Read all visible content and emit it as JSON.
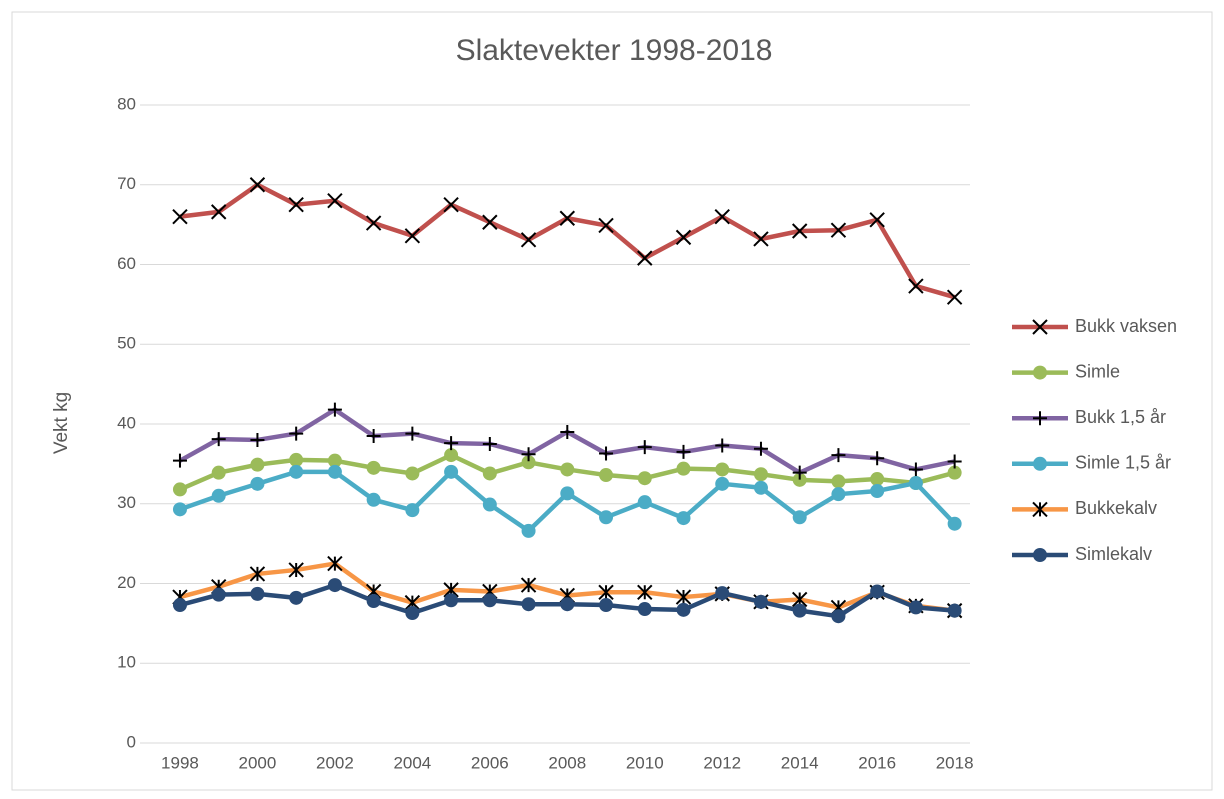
{
  "chart_data": {
    "type": "line",
    "title": "Slaktevekter 1998-2018",
    "y_label": "Vekt kg",
    "categories": [
      "1998",
      null,
      "2000",
      null,
      "2002",
      null,
      "2004",
      null,
      "2006",
      null,
      "2008",
      null,
      "2010",
      null,
      "2012",
      null,
      "2014",
      null,
      "2016",
      null,
      "2018"
    ],
    "ylim": [
      0,
      80
    ],
    "yticks": [
      0,
      10,
      20,
      30,
      40,
      50,
      60,
      70,
      80
    ],
    "grid": true,
    "legend": "right",
    "series": [
      {
        "name": "Bukk vaksen",
        "color": "#c0504d",
        "marker": "x",
        "values": [
          66,
          66.6,
          70,
          67.5,
          68,
          65.2,
          63.6,
          67.5,
          65.3,
          63.1,
          65.8,
          64.9,
          60.8,
          63.4,
          66,
          63.2,
          64.2,
          64.3,
          65.6,
          57.3,
          55.9
        ]
      },
      {
        "name": "Simle",
        "color": "#9bbb59",
        "marker": "circle",
        "values": [
          31.8,
          33.9,
          34.9,
          35.5,
          35.4,
          34.5,
          33.8,
          36.1,
          33.8,
          35.2,
          34.3,
          33.6,
          33.2,
          34.4,
          34.3,
          33.7,
          33,
          32.8,
          33.1,
          32.6,
          33.9
        ]
      },
      {
        "name": "Bukk 1,5 år",
        "color": "#8064a2",
        "marker": "plus",
        "values": [
          35.4,
          38.1,
          38,
          38.8,
          41.8,
          38.5,
          38.8,
          37.6,
          37.5,
          36.2,
          39,
          36.3,
          37.1,
          36.5,
          37.3,
          36.9,
          33.9,
          36.1,
          35.7,
          34.3,
          35.3
        ]
      },
      {
        "name": "Simle 1,5 år",
        "color": "#4bacc6",
        "marker": "circle",
        "values": [
          29.3,
          31,
          32.5,
          34,
          34,
          30.5,
          29.2,
          34,
          29.9,
          26.6,
          31.3,
          28.3,
          30.2,
          28.2,
          32.5,
          32,
          28.3,
          31.2,
          31.6,
          32.6,
          27.5
        ]
      },
      {
        "name": "Bukkekalv",
        "color": "#f79646",
        "marker": "star",
        "values": [
          18.3,
          19.6,
          21.2,
          21.7,
          22.5,
          19,
          17.6,
          19.2,
          19,
          19.8,
          18.5,
          18.9,
          18.9,
          18.3,
          18.7,
          17.7,
          18,
          17,
          18.9,
          17.2,
          16.6
        ]
      },
      {
        "name": "Simlekalv",
        "color": "#2a4b76",
        "marker": "circle",
        "values": [
          17.3,
          18.6,
          18.7,
          18.2,
          19.8,
          17.8,
          16.3,
          17.9,
          17.9,
          17.4,
          17.4,
          17.3,
          16.8,
          16.7,
          18.8,
          17.7,
          16.6,
          15.9,
          19,
          17,
          16.6
        ]
      }
    ]
  }
}
